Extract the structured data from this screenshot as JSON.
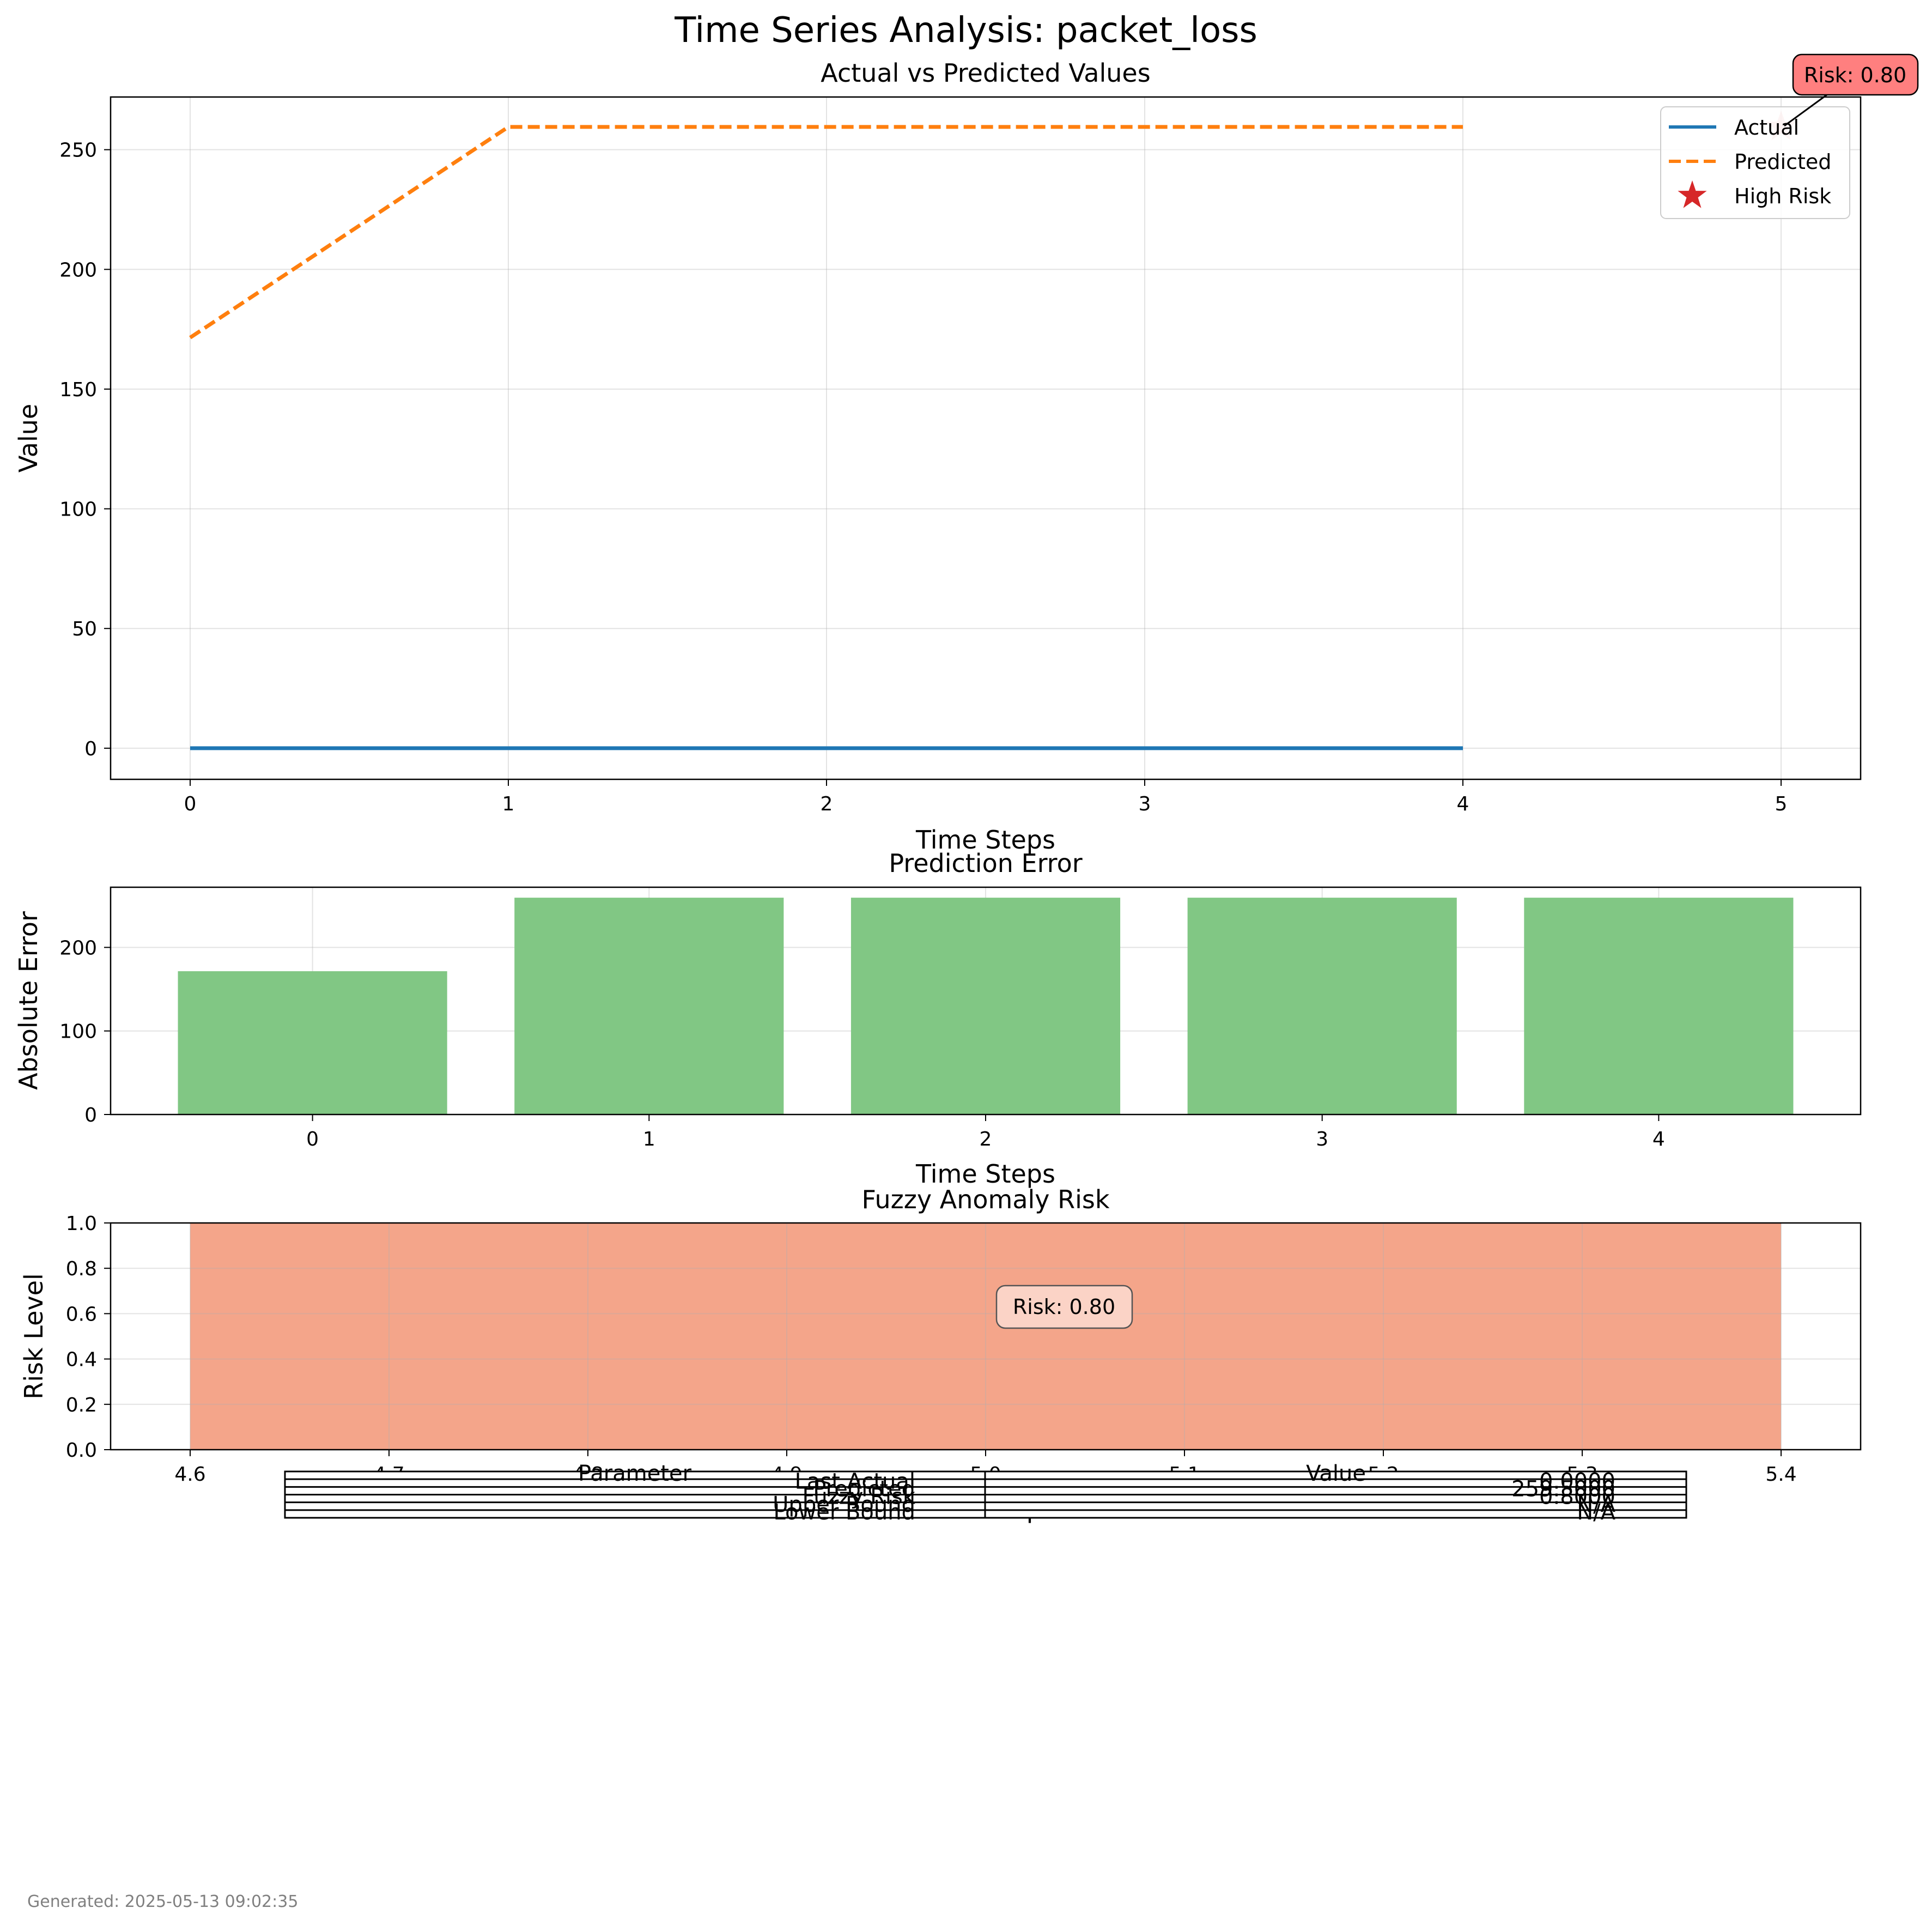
{
  "figure": {
    "title": "Time Series Analysis: packet_loss",
    "footer": "Generated: 2025-05-13 09:02:35"
  },
  "colors": {
    "actual": "#1f77b4",
    "predicted": "#ff7f0e",
    "high_risk": "#d62728",
    "error_bars": "#81c784",
    "risk_fill": "#f4a58a",
    "risk_box_top": "#ff7f7f",
    "risk_box_bottom": "#fbd3c6"
  },
  "chart_data": [
    {
      "type": "line",
      "title": "Actual vs Predicted Values",
      "xlabel": "Time Steps",
      "ylabel": "Value",
      "xlim": [
        -0.25,
        5.25
      ],
      "ylim": [
        -13,
        272
      ],
      "xticks": [
        0,
        1,
        2,
        3,
        4,
        5
      ],
      "yticks": [
        0,
        50,
        100,
        150,
        200,
        250
      ],
      "grid": true,
      "legend_position": "top-right",
      "series": [
        {
          "name": "Actual",
          "style": "solid",
          "x": [
            0,
            1,
            2,
            3,
            4
          ],
          "y": [
            0,
            0,
            0,
            0,
            0
          ]
        },
        {
          "name": "Predicted",
          "style": "dashed",
          "x": [
            0,
            1,
            2,
            3,
            4
          ],
          "y": [
            171.5,
            259.5,
            259.5,
            259.5,
            259.5
          ]
        }
      ],
      "markers": [
        {
          "name": "High Risk",
          "shape": "star",
          "x": 5,
          "y": 259.5
        }
      ],
      "annotations": [
        {
          "text": "Risk: 0.80",
          "x": 5,
          "y": 259.5
        }
      ]
    },
    {
      "type": "bar",
      "title": "Prediction Error",
      "xlabel": "Time Steps",
      "ylabel": "Absolute Error",
      "categories": [
        "0",
        "1",
        "2",
        "3",
        "4"
      ],
      "values": [
        171.5,
        259.5,
        259.5,
        259.5,
        259.5
      ],
      "ylim": [
        0,
        272
      ],
      "yticks": [
        0,
        100,
        200
      ],
      "grid": true
    },
    {
      "type": "area",
      "title": "Fuzzy Anomaly Risk",
      "xlabel": "Time Steps",
      "ylabel": "Risk Level",
      "xlim": [
        4.56,
        5.44
      ],
      "ylim": [
        0,
        1
      ],
      "xticks": [
        "4.6",
        "4.7",
        "4.8",
        "4.9",
        "5.0",
        "5.1",
        "5.2",
        "5.3",
        "5.4"
      ],
      "yticks": [
        "0.0",
        "0.2",
        "0.4",
        "0.6",
        "0.8",
        "1.0"
      ],
      "fill_x": [
        4.6,
        5.4
      ],
      "fill_y": 1.0,
      "grid": true,
      "annotations": [
        {
          "text": "Risk: 0.80",
          "x": 5.0,
          "y": 0.62
        }
      ]
    },
    {
      "type": "table",
      "columns": [
        "Parameter",
        "Value"
      ],
      "rows": [
        [
          "Last Actual",
          "0.0000"
        ],
        [
          "Predicted",
          "259.5000"
        ],
        [
          "Fuzzy Risk",
          "0.8000"
        ],
        [
          "Upper Bound",
          "N/A"
        ],
        [
          "Lower Bound",
          "N/A"
        ]
      ]
    }
  ]
}
